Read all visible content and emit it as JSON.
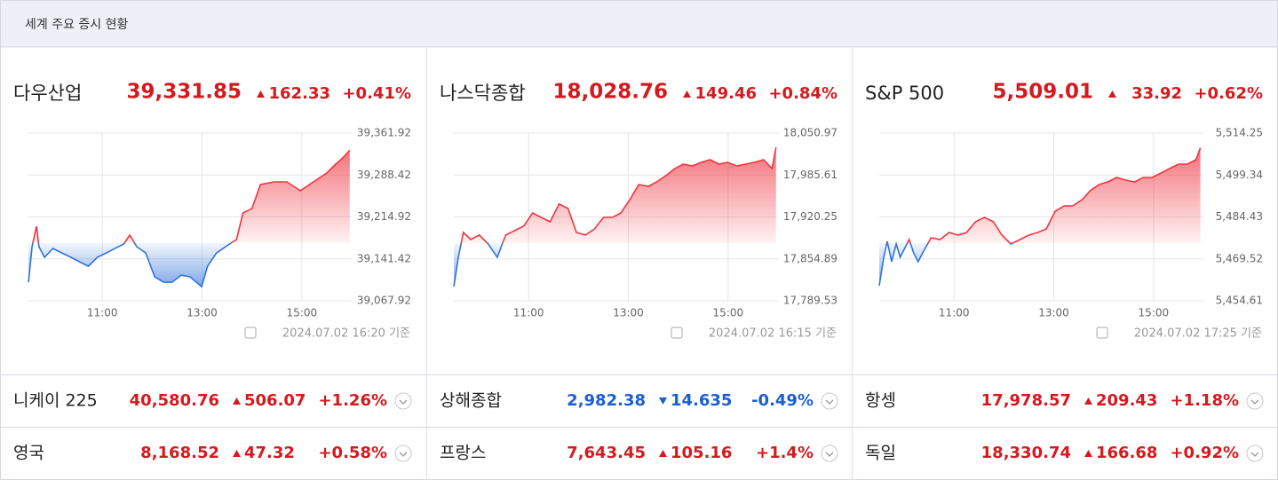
{
  "header": {
    "title": "세계 주요 증시 현황"
  },
  "colors": {
    "up": "#d41a1f",
    "down": "#1b5fd1"
  },
  "chart_data": [
    {
      "type": "line",
      "title": "다우산업",
      "price": "39,331.85",
      "change": "162.33",
      "change_pct": "+0.41%",
      "direction": "up",
      "timestamp": "2024.07.02 16:20 기준",
      "baseline": 39169.52,
      "up_color": "#f0343e",
      "down_color": "#2f72dc",
      "xlim": [
        9.5,
        16
      ],
      "xticks": [
        {
          "value": 11,
          "label": "11:00"
        },
        {
          "value": 13,
          "label": "13:00"
        },
        {
          "value": 15,
          "label": "15:00"
        }
      ],
      "ylim": [
        39067.92,
        39361.92
      ],
      "yticks": [
        {
          "value": 39361.92,
          "label": "39,361.92"
        },
        {
          "value": 39288.42,
          "label": "39,288.42"
        },
        {
          "value": 39214.92,
          "label": "39,214.92"
        },
        {
          "value": 39141.42,
          "label": "39,141.42"
        },
        {
          "value": 39067.92,
          "label": "39,067.92"
        }
      ],
      "x": [
        9.52,
        9.59,
        9.68,
        9.73,
        9.84,
        10.01,
        10.19,
        10.37,
        10.54,
        10.72,
        10.9,
        11.08,
        11.25,
        11.43,
        11.55,
        11.69,
        11.87,
        12.05,
        12.23,
        12.4,
        12.58,
        12.76,
        12.99,
        13.11,
        13.29,
        13.55,
        13.69,
        13.82,
        14.0,
        14.17,
        14.44,
        14.7,
        14.97,
        15.23,
        15.5,
        15.68,
        15.82,
        15.96
      ],
      "values": [
        39100.5,
        39162.7,
        39198.5,
        39162.7,
        39144.1,
        39159.6,
        39151.8,
        39144.1,
        39136.3,
        39128.5,
        39144.1,
        39151.8,
        39159.6,
        39167.4,
        39183.0,
        39162.7,
        39151.8,
        39109.8,
        39100.5,
        39100.5,
        39112.9,
        39109.8,
        39092.7,
        39128.5,
        39151.8,
        39167.4,
        39175.2,
        39221.9,
        39229.6,
        39271.7,
        39276.3,
        39276.3,
        39260.8,
        39276.3,
        39291.9,
        39307.4,
        39318.3,
        39331.85
      ]
    },
    {
      "type": "line",
      "title": "나스닥종합",
      "price": "18,028.76",
      "change": "149.46",
      "change_pct": "+0.84%",
      "direction": "up",
      "timestamp": "2024.07.02 16:15 기준",
      "baseline": 17879.3,
      "up_color": "#f0343e",
      "down_color": "#2f72dc",
      "xlim": [
        9.5,
        16
      ],
      "xticks": [
        {
          "value": 11,
          "label": "11:00"
        },
        {
          "value": 13,
          "label": "13:00"
        },
        {
          "value": 15,
          "label": "15:00"
        }
      ],
      "ylim": [
        17789.53,
        18050.97
      ],
      "yticks": [
        {
          "value": 18050.97,
          "label": "18,050.97"
        },
        {
          "value": 17985.61,
          "label": "17,985.61"
        },
        {
          "value": 17920.25,
          "label": "17,920.25"
        },
        {
          "value": 17854.89,
          "label": "17,854.89"
        },
        {
          "value": 17789.53,
          "label": "17,789.53"
        }
      ],
      "x": [
        9.5,
        9.59,
        9.69,
        9.84,
        10.01,
        10.19,
        10.37,
        10.54,
        10.72,
        10.9,
        11.08,
        11.25,
        11.43,
        11.61,
        11.79,
        11.96,
        12.14,
        12.32,
        12.5,
        12.68,
        12.85,
        13.03,
        13.21,
        13.4,
        13.57,
        13.75,
        13.93,
        14.1,
        14.28,
        14.46,
        14.64,
        14.82,
        14.99,
        15.17,
        15.35,
        15.53,
        15.71,
        15.88,
        15.96
      ],
      "values": [
        17811.7,
        17857.4,
        17896.1,
        17885.0,
        17892.0,
        17878.1,
        17857.4,
        17892.0,
        17898.9,
        17905.8,
        17926.5,
        17919.6,
        17912.7,
        17940.4,
        17933.4,
        17896.1,
        17892.0,
        17901.6,
        17919.6,
        17919.6,
        17926.5,
        17947.3,
        17970.8,
        17968.0,
        17974.9,
        17984.6,
        17995.7,
        18002.6,
        17999.8,
        18005.4,
        18009.5,
        18002.6,
        18005.4,
        17999.8,
        18002.6,
        18005.4,
        18009.5,
        17995.7,
        18028.76
      ]
    },
    {
      "type": "line",
      "title": "S&P 500",
      "price": "5,509.01",
      "change": "33.92",
      "change_pct": "+0.62%",
      "direction": "up",
      "timestamp": "2024.07.02 17:25 기준",
      "baseline": 5475.09,
      "up_color": "#f0343e",
      "down_color": "#2f72dc",
      "xlim": [
        9.5,
        16
      ],
      "xticks": [
        {
          "value": 11,
          "label": "11:00"
        },
        {
          "value": 13,
          "label": "13:00"
        },
        {
          "value": 15,
          "label": "15:00"
        }
      ],
      "ylim": [
        5454.61,
        5514.25
      ],
      "yticks": [
        {
          "value": 5514.25,
          "label": "5,514.25"
        },
        {
          "value": 5499.34,
          "label": "5,499.34"
        },
        {
          "value": 5484.43,
          "label": "5,484.43"
        },
        {
          "value": 5469.52,
          "label": "5,469.52"
        },
        {
          "value": 5454.61,
          "label": "5,454.61"
        }
      ],
      "x": [
        9.5,
        9.59,
        9.66,
        9.75,
        9.84,
        9.92,
        10.01,
        10.1,
        10.19,
        10.28,
        10.37,
        10.54,
        10.72,
        10.9,
        11.08,
        11.25,
        11.43,
        11.61,
        11.79,
        11.96,
        12.14,
        12.32,
        12.5,
        12.68,
        12.85,
        13.03,
        13.21,
        13.38,
        13.57,
        13.73,
        13.91,
        14.08,
        14.26,
        14.44,
        14.62,
        14.79,
        14.97,
        15.15,
        15.32,
        15.5,
        15.68,
        15.85,
        15.94
      ],
      "values": [
        5459.97,
        5470.07,
        5475.75,
        5468.49,
        5474.8,
        5470.07,
        5473.22,
        5476.38,
        5471.64,
        5468.49,
        5471.64,
        5477.01,
        5476.38,
        5478.9,
        5477.96,
        5478.9,
        5482.69,
        5484.27,
        5482.69,
        5477.96,
        5474.8,
        5476.38,
        5477.96,
        5478.9,
        5480.17,
        5486.48,
        5488.37,
        5488.37,
        5490.58,
        5493.74,
        5495.95,
        5496.89,
        5498.47,
        5497.52,
        5496.89,
        5498.47,
        5498.47,
        5500.05,
        5501.63,
        5503.2,
        5503.2,
        5504.78,
        5509.01
      ]
    }
  ],
  "table": {
    "rows": [
      {
        "name": "니케이 225",
        "price": "40,580.76",
        "change": "506.07",
        "change_pct": "+1.26%",
        "direction": "up"
      },
      {
        "name": "상해종합",
        "price": "2,982.38",
        "change": "14.635",
        "change_pct": "-0.49%",
        "direction": "down"
      },
      {
        "name": "항셍",
        "price": "17,978.57",
        "change": "209.43",
        "change_pct": "+1.18%",
        "direction": "up"
      },
      {
        "name": "영국",
        "price": "8,168.52",
        "change": "47.32",
        "change_pct": "+0.58%",
        "direction": "up"
      },
      {
        "name": "프랑스",
        "price": "7,643.45",
        "change": "105.16",
        "change_pct": "+1.4%",
        "direction": "up"
      },
      {
        "name": "독일",
        "price": "18,330.74",
        "change": "166.68",
        "change_pct": "+0.92%",
        "direction": "up"
      }
    ]
  }
}
